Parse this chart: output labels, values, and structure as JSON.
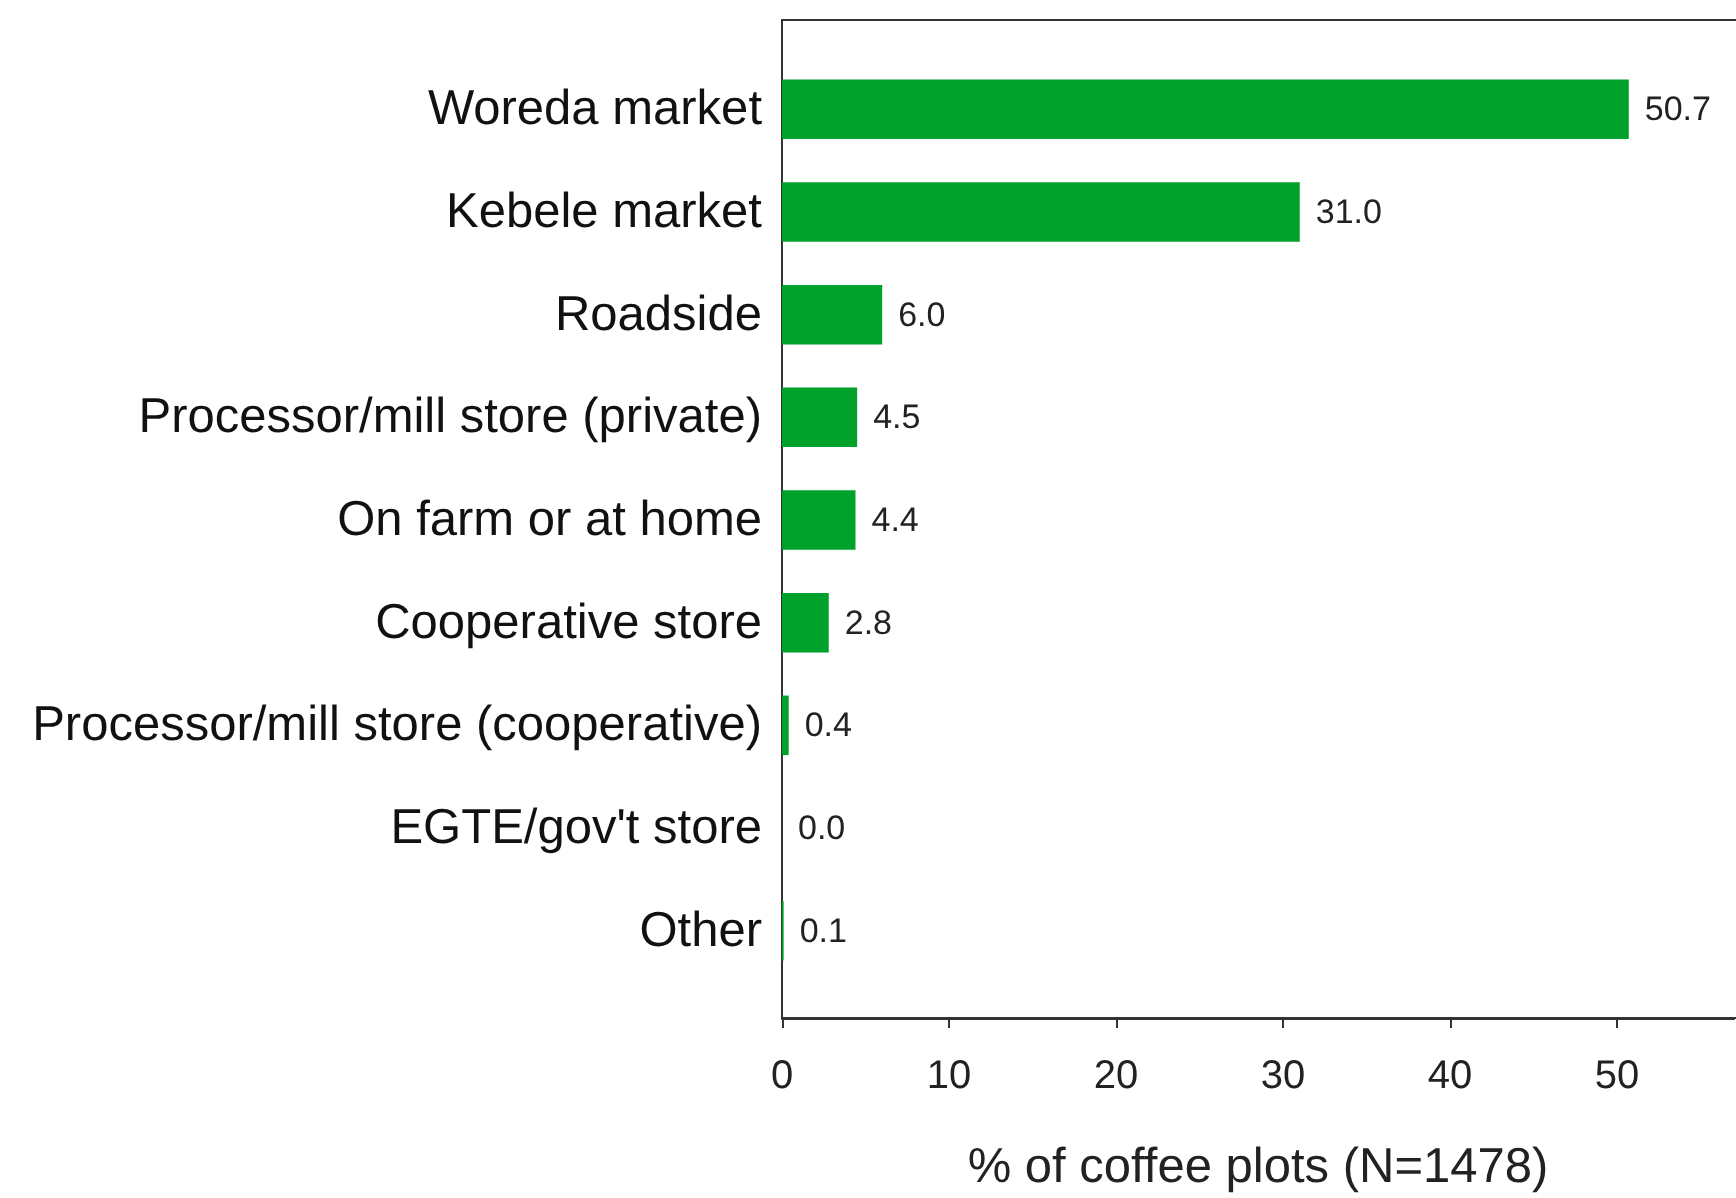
{
  "chart_data": {
    "type": "bar",
    "orientation": "horizontal",
    "xlabel": "% of coffee plots (N=1478)",
    "categories": [
      "Woreda market",
      "Kebele market",
      "Roadside",
      "Processor/mill store (private)",
      "On farm or at home",
      "Cooperative store",
      "Processor/mill store (cooperative)",
      "EGTE/gov't store",
      "Other"
    ],
    "values": [
      50.7,
      31.0,
      6.0,
      4.5,
      4.4,
      2.8,
      0.4,
      0.0,
      0.1
    ],
    "value_labels": [
      "50.7",
      "31.0",
      "6.0",
      "4.5",
      "4.4",
      "2.8",
      "0.4",
      "0.0",
      "0.1"
    ],
    "color": "#00a22b",
    "xlim": [
      0,
      57
    ],
    "xticks": [
      0,
      10,
      20,
      30,
      40,
      50
    ]
  }
}
